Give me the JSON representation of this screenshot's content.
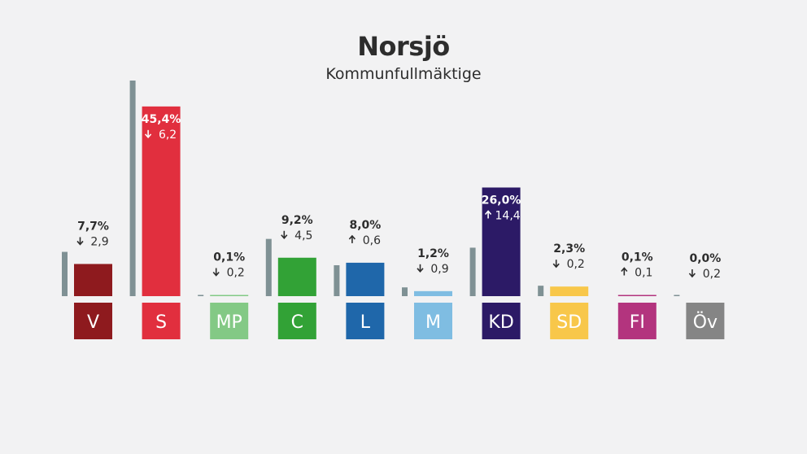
{
  "colors": {
    "background": "#f2f2f3",
    "previous_bar": "#7f9194",
    "text": "#2d2d2d"
  },
  "chart_data": {
    "type": "bar",
    "title": "Norsjö",
    "subtitle": "Kommunfullmäktige",
    "categories": [
      "V",
      "S",
      "MP",
      "C",
      "L",
      "M",
      "KD",
      "SD",
      "FI",
      "Öv"
    ],
    "series": [
      {
        "values": [
          7.7,
          45.4,
          0.1,
          9.2,
          8.0,
          1.2,
          26.0,
          2.3,
          0.1,
          0.0
        ],
        "labels": [
          "7,7%",
          "45,4%",
          "0,1%",
          "9,2%",
          "8,0%",
          "1,2%",
          "26,0%",
          "2,3%",
          "0,1%",
          "0,0%"
        ]
      },
      {
        "values": [
          10.6,
          51.6,
          0.3,
          13.7,
          7.4,
          2.1,
          11.6,
          2.5,
          0.0,
          0.2
        ]
      }
    ],
    "changes": [
      {
        "direction": "down",
        "label": "2,9"
      },
      {
        "direction": "down",
        "label": "6,2"
      },
      {
        "direction": "down",
        "label": "0,2"
      },
      {
        "direction": "down",
        "label": "4,5"
      },
      {
        "direction": "up",
        "label": "0,6"
      },
      {
        "direction": "down",
        "label": "0,9"
      },
      {
        "direction": "up",
        "label": "14,4"
      },
      {
        "direction": "down",
        "label": "0,2"
      },
      {
        "direction": "up",
        "label": "0,1"
      },
      {
        "direction": "down",
        "label": "0,2"
      }
    ],
    "party_colors": [
      "#8e1a1e",
      "#e12f3e",
      "#83c985",
      "#32a236",
      "#1f67aa",
      "#7fbde2",
      "#2c1a66",
      "#f8c74a",
      "#b3347e",
      "#858585"
    ],
    "ylim": [
      0,
      51.6
    ],
    "grid": false,
    "legend": "none"
  }
}
